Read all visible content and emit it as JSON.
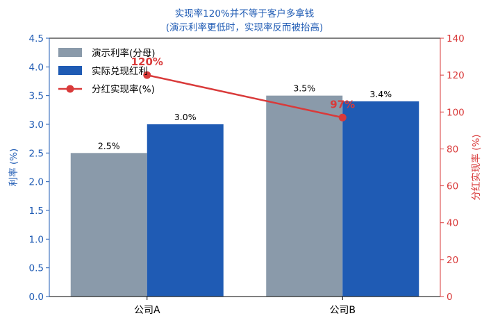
{
  "chart_data": {
    "type": "bar",
    "title": "实现率120%并不等于客户多拿钱",
    "subtitle": "(演示利率更低时，实现率反而被抬高)",
    "categories": [
      "公司A",
      "公司B"
    ],
    "ylabel": "利率 (%)",
    "ylabel_right": "分红实现率 (%)",
    "ylim": [
      0,
      4.5
    ],
    "ylim_right": [
      0,
      140
    ],
    "yticks": [
      "0.0",
      "0.5",
      "1.0",
      "1.5",
      "2.0",
      "2.5",
      "3.0",
      "3.5",
      "4.0",
      "4.5"
    ],
    "yticks_right": [
      "0",
      "20",
      "40",
      "60",
      "80",
      "100",
      "120",
      "140"
    ],
    "grid": false,
    "legend_position": "top-left",
    "series": [
      {
        "name": "演示利率(分母)",
        "kind": "bar",
        "axis": "left",
        "values": [
          2.5,
          3.5
        ],
        "labels": [
          "2.5%",
          "3.5%"
        ],
        "color": "#8a9aaa"
      },
      {
        "name": "实际兑现红利",
        "kind": "bar",
        "axis": "left",
        "values": [
          3.0,
          3.4
        ],
        "labels": [
          "3.0%",
          "3.4%"
        ],
        "color": "#1f5bb4"
      },
      {
        "name": "分红实现率(%)",
        "kind": "line",
        "axis": "right",
        "values": [
          120,
          97
        ],
        "labels": [
          "120%",
          "97%"
        ],
        "color": "#d93a3a"
      }
    ]
  }
}
